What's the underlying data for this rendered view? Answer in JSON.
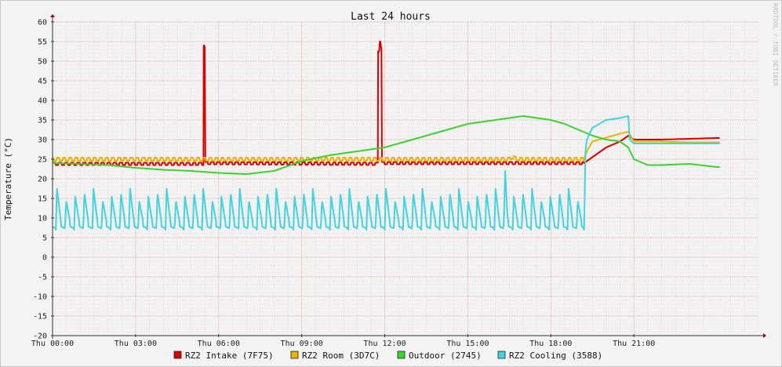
{
  "chart_data": {
    "type": "line",
    "title": "Last 24 hours",
    "ylabel": "Temperature (°C)",
    "watermark": "RRDTOOL / TOBI OETIKER",
    "ylim": [
      -20,
      60
    ],
    "yticks": [
      60,
      55,
      50,
      45,
      40,
      35,
      30,
      25,
      20,
      15,
      10,
      5,
      0,
      -5,
      -10,
      -15,
      -20
    ],
    "xlim": [
      0,
      25.5
    ],
    "xticks": [
      {
        "hour": 0,
        "label": "Thu 00:00"
      },
      {
        "hour": 3,
        "label": "Thu 03:00"
      },
      {
        "hour": 6,
        "label": "Thu 06:00"
      },
      {
        "hour": 9,
        "label": "Thu 09:00"
      },
      {
        "hour": 12,
        "label": "Thu 12:00"
      },
      {
        "hour": 15,
        "label": "Thu 15:00"
      },
      {
        "hour": 18,
        "label": "Thu 18:00"
      },
      {
        "hour": 21,
        "label": "Thu 21:00"
      }
    ],
    "grid": true,
    "legend_position": "bottom",
    "series": [
      {
        "name": "RZ2 Intake (7F75)",
        "color": "#dd0000",
        "pattern": "oscillate",
        "period": 0.22,
        "amplitude": 0.6,
        "x": [
          0,
          5.45,
          5.46,
          5.48,
          5.5,
          5.52,
          11.75,
          11.76,
          11.8,
          11.82,
          11.84,
          11.88,
          11.9,
          18.2,
          19.2,
          19.3,
          19.6,
          20.0,
          20.5,
          20.7,
          20.8,
          21.0,
          22.0,
          23.0,
          24.0,
          24.1
        ],
        "y": [
          23.8,
          23.8,
          54,
          54,
          53.5,
          24,
          23.8,
          52.5,
          52.5,
          55,
          55,
          53,
          24,
          24,
          24,
          24.5,
          26,
          28,
          29.5,
          30.5,
          31,
          30,
          30,
          30.2,
          30.4,
          30.4
        ],
        "osc_until": 19.2
      },
      {
        "name": "RZ2 Room (3D7C)",
        "color": "#e8b400",
        "pattern": "oscillate",
        "period": 0.22,
        "amplitude": 0.8,
        "x": [
          0,
          16.5,
          16.6,
          16.8,
          17.5,
          18.5,
          19.2,
          19.3,
          19.5,
          20.0,
          20.5,
          20.8,
          21.0,
          22.0,
          23.0,
          24.0,
          24.1
        ],
        "y": [
          25,
          25,
          25.6,
          25,
          25,
          25,
          25,
          27,
          29.5,
          30.5,
          31.5,
          32,
          29.5,
          29.5,
          29.3,
          29.3,
          29.3
        ],
        "osc_until": 19.2
      },
      {
        "name": "Outdoor (2745)",
        "color": "#3cd230",
        "pattern": "smooth",
        "x": [
          0,
          1,
          2,
          3,
          4,
          5,
          6,
          7,
          8,
          9,
          10,
          11,
          12,
          13,
          14,
          15,
          16,
          17,
          18,
          18.5,
          19,
          19.5,
          20,
          20.5,
          20.8,
          21.0,
          21.5,
          22,
          23,
          24,
          24.1
        ],
        "y": [
          24,
          23.8,
          23.5,
          22.8,
          22.3,
          22,
          21.5,
          21.2,
          22,
          24.5,
          26,
          27,
          28,
          30,
          32,
          34,
          35,
          36,
          35,
          34,
          32.5,
          31,
          30,
          29.5,
          28,
          25,
          23.5,
          23.5,
          23.8,
          23.0,
          23.0
        ]
      },
      {
        "name": "RZ2 Cooling (3588)",
        "color": "#40d4e0",
        "pattern": "sawtooth",
        "period": 0.33,
        "low": 7,
        "high": 17.5,
        "x": [
          0,
          16.3,
          16.35,
          16.45,
          16.6,
          16.8,
          17.2,
          17.6,
          18.0,
          18.9,
          19.2,
          19.25,
          19.3,
          19.5,
          20.0,
          20.5,
          20.8,
          20.85,
          21.0,
          22.0,
          23.0,
          24.0,
          24.1
        ],
        "y": [
          8,
          8,
          22,
          8,
          7,
          6.5,
          6,
          6,
          8,
          8,
          7,
          27,
          30,
          33,
          35,
          35.5,
          36,
          30,
          29,
          29,
          29,
          29,
          29
        ],
        "osc_until": 19.2
      }
    ]
  }
}
